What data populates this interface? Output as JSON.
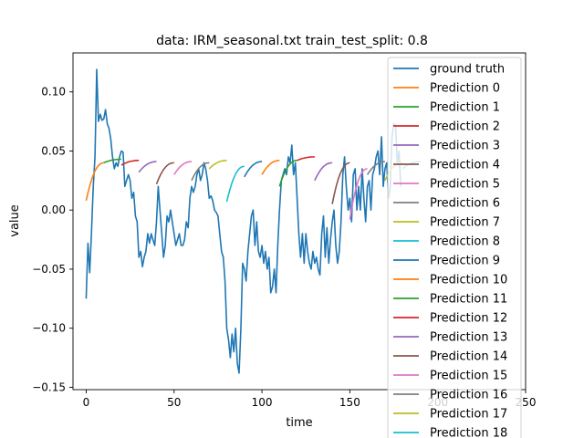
{
  "chart_data": {
    "type": "line",
    "title": "data: IRM_seasonal.txt train_test_split: 0.8",
    "xlabel": "time",
    "ylabel": "value",
    "xlim": [
      -7.5,
      250
    ],
    "ylim": [
      -0.152,
      0.133
    ],
    "x_ticks": [
      0,
      50,
      100,
      150,
      200,
      250
    ],
    "x_tick_labels": [
      "0",
      "50",
      "100",
      "150",
      "200",
      "250"
    ],
    "y_ticks": [
      -0.15,
      -0.1,
      -0.05,
      0.0,
      0.05,
      0.1
    ],
    "y_tick_labels": [
      "−0.15",
      "−0.10",
      "−0.05",
      "0.00",
      "0.05",
      "0.10"
    ],
    "grid": false,
    "legend_position": "top-right",
    "ground_truth": {
      "name": "ground truth",
      "color": "#1f77b4",
      "points": [
        [
          0,
          -0.075
        ],
        [
          1,
          -0.028
        ],
        [
          2,
          -0.053
        ],
        [
          3,
          -0.02
        ],
        [
          4,
          0.02
        ],
        [
          5,
          0.045
        ],
        [
          6,
          0.119
        ],
        [
          7,
          0.075
        ],
        [
          8,
          0.081
        ],
        [
          9,
          0.076
        ],
        [
          10,
          0.077
        ],
        [
          11,
          0.085
        ],
        [
          12,
          0.073
        ],
        [
          13,
          0.069
        ],
        [
          14,
          0.06
        ],
        [
          15,
          0.045
        ],
        [
          16,
          0.035
        ],
        [
          17,
          0.04
        ],
        [
          18,
          0.037
        ],
        [
          19,
          0.045
        ],
        [
          20,
          0.05
        ],
        [
          21,
          0.049
        ],
        [
          22,
          0.02
        ],
        [
          23,
          0.025
        ],
        [
          24,
          0.03
        ],
        [
          25,
          0.025
        ],
        [
          26,
          0.01
        ],
        [
          27,
          0.015
        ],
        [
          28,
          -0.005
        ],
        [
          29,
          -0.01
        ],
        [
          30,
          -0.04
        ],
        [
          31,
          -0.035
        ],
        [
          32,
          -0.048
        ],
        [
          33,
          -0.04
        ],
        [
          34,
          -0.035
        ],
        [
          35,
          -0.02
        ],
        [
          36,
          -0.028
        ],
        [
          37,
          -0.02
        ],
        [
          38,
          -0.025
        ],
        [
          39,
          -0.03
        ],
        [
          40,
          -0.01
        ],
        [
          41,
          0.02
        ],
        [
          42,
          0.0
        ],
        [
          43,
          -0.02
        ],
        [
          44,
          -0.04
        ],
        [
          45,
          -0.03
        ],
        [
          46,
          -0.005
        ],
        [
          47,
          -0.01
        ],
        [
          48,
          0.0
        ],
        [
          49,
          -0.01
        ],
        [
          50,
          -0.02
        ],
        [
          51,
          -0.03
        ],
        [
          52,
          -0.025
        ],
        [
          53,
          -0.02
        ],
        [
          54,
          -0.03
        ],
        [
          55,
          -0.03
        ],
        [
          56,
          -0.025
        ],
        [
          57,
          -0.01
        ],
        [
          58,
          -0.015
        ],
        [
          59,
          0.01
        ],
        [
          60,
          0.02
        ],
        [
          61,
          0.015
        ],
        [
          62,
          0.02
        ],
        [
          63,
          0.03
        ],
        [
          64,
          0.035
        ],
        [
          65,
          0.025
        ],
        [
          66,
          0.03
        ],
        [
          67,
          0.04
        ],
        [
          68,
          0.035
        ],
        [
          69,
          0.025
        ],
        [
          70,
          0.01
        ],
        [
          71,
          0.012
        ],
        [
          72,
          0.008
        ],
        [
          73,
          0.0
        ],
        [
          74,
          -0.002
        ],
        [
          75,
          -0.005
        ],
        [
          76,
          -0.02
        ],
        [
          77,
          -0.035
        ],
        [
          78,
          -0.04
        ],
        [
          79,
          -0.06
        ],
        [
          80,
          -0.1
        ],
        [
          81,
          -0.11
        ],
        [
          82,
          -0.125
        ],
        [
          83,
          -0.105
        ],
        [
          84,
          -0.12
        ],
        [
          85,
          -0.1
        ],
        [
          86,
          -0.13
        ],
        [
          87,
          -0.138
        ],
        [
          88,
          -0.1
        ],
        [
          89,
          -0.045
        ],
        [
          90,
          -0.05
        ],
        [
          91,
          -0.06
        ],
        [
          92,
          -0.035
        ],
        [
          93,
          -0.02
        ],
        [
          94,
          -0.005
        ],
        [
          95,
          0.0
        ],
        [
          96,
          -0.03
        ],
        [
          97,
          -0.01
        ],
        [
          98,
          -0.035
        ],
        [
          99,
          -0.04
        ],
        [
          100,
          -0.03
        ],
        [
          101,
          -0.045
        ],
        [
          102,
          -0.035
        ],
        [
          103,
          -0.05
        ],
        [
          104,
          -0.04
        ],
        [
          105,
          -0.07
        ],
        [
          106,
          -0.065
        ],
        [
          107,
          -0.05
        ],
        [
          108,
          -0.07
        ],
        [
          109,
          -0.03
        ],
        [
          110,
          0.0
        ],
        [
          111,
          0.025
        ],
        [
          112,
          0.03
        ],
        [
          113,
          0.035
        ],
        [
          114,
          0.03
        ],
        [
          115,
          0.045
        ],
        [
          116,
          0.04
        ],
        [
          117,
          0.055
        ],
        [
          118,
          0.03
        ],
        [
          119,
          0.04
        ],
        [
          120,
          0.01
        ],
        [
          121,
          -0.02
        ],
        [
          122,
          -0.04
        ],
        [
          123,
          -0.02
        ],
        [
          124,
          -0.045
        ],
        [
          125,
          -0.02
        ],
        [
          126,
          -0.035
        ],
        [
          127,
          -0.045
        ],
        [
          128,
          -0.05
        ],
        [
          129,
          -0.035
        ],
        [
          130,
          -0.045
        ],
        [
          131,
          -0.04
        ],
        [
          132,
          -0.05
        ],
        [
          133,
          -0.055
        ],
        [
          134,
          -0.02
        ],
        [
          135,
          -0.005
        ],
        [
          136,
          -0.04
        ],
        [
          137,
          -0.015
        ],
        [
          138,
          -0.045
        ],
        [
          139,
          -0.025
        ],
        [
          140,
          -0.01
        ],
        [
          141,
          0.0
        ],
        [
          142,
          -0.03
        ],
        [
          143,
          -0.045
        ],
        [
          144,
          -0.035
        ],
        [
          145,
          -0.01
        ],
        [
          146,
          0.03
        ],
        [
          147,
          0.045
        ],
        [
          148,
          0.02
        ],
        [
          149,
          0.0
        ],
        [
          150,
          0.01
        ],
        [
          151,
          -0.01
        ],
        [
          152,
          0.03
        ],
        [
          153,
          0.035
        ],
        [
          154,
          0.0
        ],
        [
          155,
          0.02
        ],
        [
          156,
          0.0
        ],
        [
          157,
          0.035
        ],
        [
          158,
          0.01
        ],
        [
          159,
          -0.01
        ],
        [
          160,
          0.02
        ],
        [
          161,
          0.025
        ],
        [
          162,
          0.0
        ],
        [
          163,
          0.03
        ],
        [
          164,
          0.035
        ],
        [
          165,
          0.045
        ],
        [
          166,
          0.05
        ],
        [
          167,
          0.03
        ],
        [
          168,
          0.062
        ],
        [
          169,
          0.02
        ],
        [
          170,
          0.035
        ],
        [
          171,
          0.04
        ],
        [
          172,
          0.01
        ],
        [
          173,
          0.02
        ],
        [
          174,
          0.062
        ],
        [
          175,
          0.073
        ],
        [
          176,
          0.072
        ],
        [
          177,
          0.04
        ],
        [
          178,
          0.05
        ],
        [
          179,
          0.02
        ]
      ]
    },
    "series": [
      {
        "name": "Prediction 0",
        "color": "#ff7f0e",
        "x": [
          0,
          10
        ],
        "values": [
          0.008,
          0.04
        ]
      },
      {
        "name": "Prediction 1",
        "color": "#2ca02c",
        "x": [
          10,
          20
        ],
        "values": [
          0.04,
          0.043
        ]
      },
      {
        "name": "Prediction 2",
        "color": "#d62728",
        "x": [
          20,
          30
        ],
        "values": [
          0.038,
          0.042
        ]
      },
      {
        "name": "Prediction 3",
        "color": "#9467bd",
        "x": [
          30,
          40
        ],
        "values": [
          0.032,
          0.041
        ]
      },
      {
        "name": "Prediction 4",
        "color": "#8c564b",
        "x": [
          40,
          50
        ],
        "values": [
          0.022,
          0.04
        ]
      },
      {
        "name": "Prediction 5",
        "color": "#e377c2",
        "x": [
          50,
          60
        ],
        "values": [
          0.03,
          0.041
        ]
      },
      {
        "name": "Prediction 6",
        "color": "#7f7f7f",
        "x": [
          60,
          70
        ],
        "values": [
          0.025,
          0.04
        ]
      },
      {
        "name": "Prediction 7",
        "color": "#bcbd22",
        "x": [
          70,
          80
        ],
        "values": [
          0.035,
          0.042
        ]
      },
      {
        "name": "Prediction 8",
        "color": "#17becf",
        "x": [
          80,
          90
        ],
        "values": [
          0.007,
          0.037
        ]
      },
      {
        "name": "Prediction 9",
        "color": "#1f77b4",
        "x": [
          90,
          100
        ],
        "values": [
          0.028,
          0.041
        ]
      },
      {
        "name": "Prediction 10",
        "color": "#ff7f0e",
        "x": [
          100,
          110
        ],
        "values": [
          0.03,
          0.042
        ]
      },
      {
        "name": "Prediction 11",
        "color": "#2ca02c",
        "x": [
          110,
          120
        ],
        "values": [
          0.02,
          0.042
        ]
      },
      {
        "name": "Prediction 12",
        "color": "#d62728",
        "x": [
          120,
          130
        ],
        "values": [
          0.042,
          0.045
        ]
      },
      {
        "name": "Prediction 13",
        "color": "#9467bd",
        "x": [
          130,
          140
        ],
        "values": [
          0.025,
          0.04
        ]
      },
      {
        "name": "Prediction 14",
        "color": "#8c564b",
        "x": [
          140,
          150
        ],
        "values": [
          0.005,
          0.04
        ]
      },
      {
        "name": "Prediction 15",
        "color": "#e377c2",
        "x": [
          150,
          160
        ],
        "values": [
          -0.008,
          0.035
        ]
      },
      {
        "name": "Prediction 16",
        "color": "#7f7f7f",
        "x": [
          160,
          170
        ],
        "values": [
          0.03,
          0.041
        ]
      },
      {
        "name": "Prediction 17",
        "color": "#bcbd22",
        "x": [
          170,
          180
        ],
        "values": [
          0.025,
          0.04
        ]
      },
      {
        "name": "Prediction 18",
        "color": "#17becf",
        "x": [
          180,
          190
        ],
        "values": [
          0.035,
          0.041
        ]
      }
    ]
  }
}
